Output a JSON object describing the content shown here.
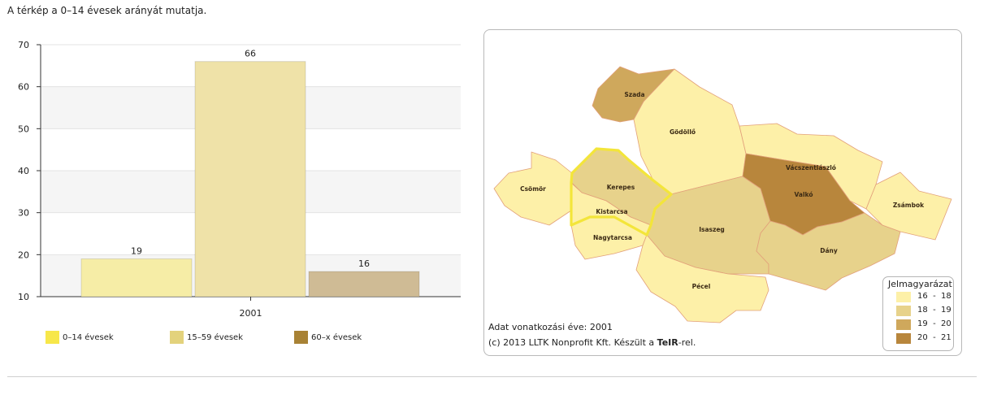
{
  "caption": "A térkép a 0–14 évesek arányát mutatja.",
  "chart_data": {
    "type": "bar",
    "categories": [
      "2001"
    ],
    "series": [
      {
        "name": "0–14 évesek",
        "values": [
          19
        ],
        "color": "#f6eda6",
        "legend_color": "#f7e74a"
      },
      {
        "name": "15–59 évesek",
        "values": [
          66
        ],
        "color": "#efe2a8",
        "legend_color": "#e3d27c"
      },
      {
        "name": "60–x évesek",
        "values": [
          16
        ],
        "color": "#cfbb95",
        "legend_color": "#a88235"
      }
    ],
    "ylim": [
      10,
      70
    ],
    "yticks": [
      10,
      20,
      30,
      40,
      50,
      60,
      70
    ],
    "xlabel": "",
    "ylabel": "",
    "title": "",
    "grid": "alternating horizontal bands",
    "legend_placement": "bottom"
  },
  "map": {
    "regions": [
      {
        "name": "Szada",
        "color": "#cfa85c"
      },
      {
        "name": "Gödöllő",
        "color": "#fdf0a8"
      },
      {
        "name": "Csömör",
        "color": "#fdf0a8"
      },
      {
        "name": "Kerepes",
        "color": "#e7d28b"
      },
      {
        "name": "Kistarcsa",
        "color": "#fdf0a8"
      },
      {
        "name": "Nagytarcsa",
        "color": "#fdf0a8"
      },
      {
        "name": "Isaszeg",
        "color": "#e7d28b"
      },
      {
        "name": "Pécel",
        "color": "#fdf0a8"
      },
      {
        "name": "Vácszentlászló",
        "color": "#fdf0a8"
      },
      {
        "name": "Valkó",
        "color": "#b8863c"
      },
      {
        "name": "Dány",
        "color": "#e7d28b"
      },
      {
        "name": "Zsámbok",
        "color": "#fdf0a8"
      }
    ],
    "highlight_color": "#f3e53a",
    "year_note": "Adat vonatkozási éve: 2001",
    "copyright_prefix": "(c) 2013 LLTK Nonprofit Kft. Készült a ",
    "copyright_brand": "TeIR",
    "copyright_suffix": "-rel.",
    "legend": {
      "title": "Jelmagyarázat",
      "items": [
        {
          "label": "16  -  18",
          "color": "#fdf0a8"
        },
        {
          "label": "18  -  19",
          "color": "#e7d28b"
        },
        {
          "label": "19  -  20",
          "color": "#cfa85c"
        },
        {
          "label": "20  -  21",
          "color": "#b8863c"
        }
      ]
    }
  }
}
